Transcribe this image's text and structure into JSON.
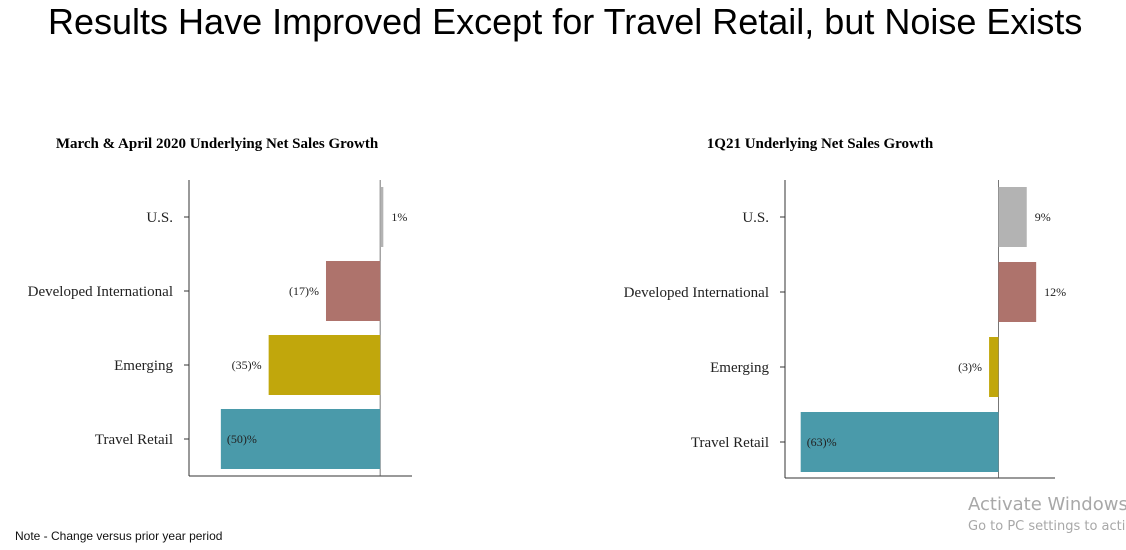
{
  "page": {
    "title": "Results Have Improved Except for Travel Retail, but Noise Exists",
    "note": "Note - Change versus prior year period",
    "watermark": {
      "line1": "Activate Windows",
      "line2": "Go to PC settings to acti"
    }
  },
  "chart_data": [
    {
      "type": "bar",
      "orientation": "horizontal",
      "title": "March & April 2020 Underlying Net Sales Growth",
      "categories": [
        "U.S.",
        "Developed International",
        "Emerging",
        "Travel Retail"
      ],
      "values": [
        1,
        -17,
        -35,
        -50
      ],
      "labels": [
        "1%",
        "(17)%",
        "(35)%",
        "(50)%"
      ],
      "colors": [
        "#b3b3b3",
        "#ae736c",
        "#c1a70c",
        "#4a9aaa"
      ],
      "xlabel": "",
      "ylabel": "",
      "xlim": [
        -60,
        10
      ],
      "grid": false,
      "legend": "none"
    },
    {
      "type": "bar",
      "orientation": "horizontal",
      "title": "1Q21 Underlying Net Sales Growth",
      "categories": [
        "U.S.",
        "Developed International",
        "Emerging",
        "Travel Retail"
      ],
      "values": [
        9,
        12,
        -3,
        -63
      ],
      "labels": [
        "9%",
        "12%",
        "(3)%",
        "(63)%"
      ],
      "colors": [
        "#b3b3b3",
        "#ae736c",
        "#c1a70c",
        "#4a9aaa"
      ],
      "xlabel": "",
      "ylabel": "",
      "xlim": [
        -68,
        18
      ],
      "grid": false,
      "legend": "none"
    }
  ]
}
